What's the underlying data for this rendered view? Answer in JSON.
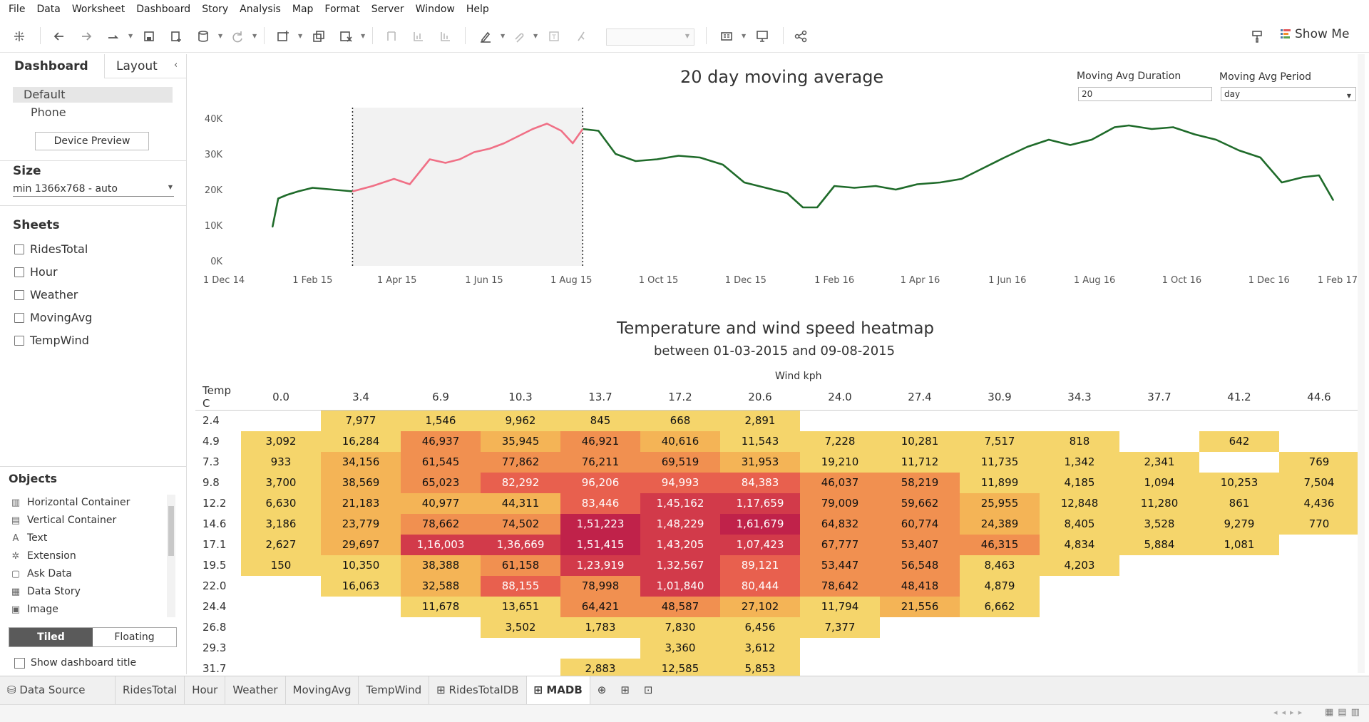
{
  "menu": [
    "File",
    "Data",
    "Worksheet",
    "Dashboard",
    "Story",
    "Analysis",
    "Map",
    "Format",
    "Server",
    "Window",
    "Help"
  ],
  "toolbar": {
    "show_me": "Show Me"
  },
  "left_pane": {
    "tab_dashboard": "Dashboard",
    "tab_layout": "Layout",
    "devices": [
      "Default",
      "Phone"
    ],
    "device_preview": "Device Preview",
    "size_label": "Size",
    "size_value": "min 1366x768 - auto",
    "sheets_label": "Sheets",
    "sheets": [
      "RidesTotal",
      "Hour",
      "Weather",
      "MovingAvg",
      "TempWind"
    ],
    "objects_label": "Objects",
    "objects": [
      "Horizontal Container",
      "Vertical Container",
      "Text",
      "Extension",
      "Ask Data",
      "Data Story",
      "Image"
    ],
    "tiled": "Tiled",
    "floating": "Floating",
    "show_title": "Show dashboard title"
  },
  "bottom_tabs": [
    "Data Source",
    "RidesTotal",
    "Hour",
    "Weather",
    "MovingAvg",
    "TempWind",
    "RidesTotalDB",
    "MADB"
  ],
  "active_tab": "MADB",
  "params": {
    "duration_label": "Moving Avg Duration",
    "duration_value": "20",
    "period_label": "Moving Avg Period",
    "period_value": "day"
  },
  "chart_data": [
    {
      "type": "line",
      "title": "20 day moving average",
      "xlabel": "",
      "ylabel": "",
      "yticks": [
        "40K",
        "30K",
        "20K",
        "10K",
        "0K"
      ],
      "ylim": [
        0,
        42000
      ],
      "xticks": [
        "1 Dec 14",
        "1 Feb 15",
        "1 Apr 15",
        "1 Jun 15",
        "1 Aug 15",
        "1 Oct 15",
        "1 Dec 15",
        "1 Feb 16",
        "1 Apr 16",
        "1 Jun 16",
        "1 Aug 16",
        "1 Oct 16",
        "1 Dec 16",
        "1 Feb 17"
      ],
      "highlight_range": [
        "2015-03-01",
        "2015-08-09"
      ],
      "colors": {
        "normal": "#1f6b2a",
        "highlight": "#f07086",
        "band": "#f2f2f2"
      },
      "series": [
        {
          "x": [
            "2015-01-04",
            "2015-01-08",
            "2015-01-14",
            "2015-01-22",
            "2015-02-01",
            "2015-02-15",
            "2015-03-01",
            "2015-03-15",
            "2015-03-30",
            "2015-04-10",
            "2015-04-24",
            "2015-05-05",
            "2015-05-15",
            "2015-05-25",
            "2015-06-05",
            "2015-06-15",
            "2015-06-25",
            "2015-07-05",
            "2015-07-15",
            "2015-07-25",
            "2015-08-02",
            "2015-08-09",
            "2015-08-20",
            "2015-09-01",
            "2015-09-15",
            "2015-09-30",
            "2015-10-15",
            "2015-10-30",
            "2015-11-15",
            "2015-11-30",
            "2015-12-15",
            "2015-12-30",
            "2016-01-10",
            "2016-01-20",
            "2016-02-01",
            "2016-02-15",
            "2016-03-01",
            "2016-03-15",
            "2016-03-30",
            "2016-04-15",
            "2016-04-30",
            "2016-05-15",
            "2016-05-30",
            "2016-06-15",
            "2016-06-30",
            "2016-07-15",
            "2016-07-30",
            "2016-08-15",
            "2016-08-25",
            "2016-09-10",
            "2016-09-25",
            "2016-10-10",
            "2016-10-25",
            "2016-11-10",
            "2016-11-25",
            "2016-12-10",
            "2016-12-25",
            "2017-01-05",
            "2017-01-15"
          ],
          "y": [
            9500,
            17500,
            18500,
            19500,
            20500,
            20000,
            19500,
            21000,
            23000,
            21500,
            28500,
            27500,
            28500,
            30500,
            31500,
            33000,
            35000,
            37000,
            38500,
            36500,
            33000,
            37000,
            36500,
            30000,
            28000,
            28500,
            29500,
            29000,
            27000,
            22000,
            20500,
            19000,
            15000,
            15000,
            21000,
            20500,
            21000,
            20000,
            21500,
            22000,
            23000,
            26000,
            29000,
            32000,
            34000,
            32500,
            34000,
            37500,
            38000,
            37000,
            37500,
            35500,
            34000,
            31000,
            29000,
            22000,
            23500,
            24000,
            17000
          ]
        }
      ]
    },
    {
      "type": "heatmap",
      "title": "Temperature and wind speed heatmap",
      "subtitle": "between 01-03-2015 and 09-08-2015",
      "xlabel": "Wind kph",
      "ylabel": "Temp C",
      "columns": [
        "0.0",
        "3.4",
        "6.9",
        "10.3",
        "13.7",
        "17.2",
        "20.6",
        "24.0",
        "27.4",
        "30.9",
        "34.3",
        "37.7",
        "41.2",
        "44.6"
      ],
      "rows": [
        {
          "temp": "2.4",
          "cells": [
            "",
            "7,977",
            "1,546",
            "9,962",
            "845",
            "668",
            "2,891",
            "",
            "",
            "",
            "",
            "",
            "",
            ""
          ]
        },
        {
          "temp": "4.9",
          "cells": [
            "3,092",
            "16,284",
            "46,937",
            "35,945",
            "46,921",
            "40,616",
            "11,543",
            "7,228",
            "10,281",
            "7,517",
            "818",
            "",
            "642",
            ""
          ]
        },
        {
          "temp": "7.3",
          "cells": [
            "933",
            "34,156",
            "61,545",
            "77,862",
            "76,211",
            "69,519",
            "31,953",
            "19,210",
            "11,712",
            "11,735",
            "1,342",
            "2,341",
            "",
            "769"
          ]
        },
        {
          "temp": "9.8",
          "cells": [
            "3,700",
            "38,569",
            "65,023",
            "82,292",
            "96,206",
            "94,993",
            "84,383",
            "46,037",
            "58,219",
            "11,899",
            "4,185",
            "1,094",
            "10,253",
            "7,504"
          ]
        },
        {
          "temp": "12.2",
          "cells": [
            "6,630",
            "21,183",
            "40,977",
            "44,311",
            "83,446",
            "1,45,162",
            "1,17,659",
            "79,009",
            "59,662",
            "25,955",
            "12,848",
            "11,280",
            "861",
            "4,436"
          ]
        },
        {
          "temp": "14.6",
          "cells": [
            "3,186",
            "23,779",
            "78,662",
            "74,502",
            "1,51,223",
            "1,48,229",
            "1,61,679",
            "64,832",
            "60,774",
            "24,389",
            "8,405",
            "3,528",
            "9,279",
            "770"
          ]
        },
        {
          "temp": "17.1",
          "cells": [
            "2,627",
            "29,697",
            "1,16,003",
            "1,36,669",
            "1,51,415",
            "1,43,205",
            "1,07,423",
            "67,777",
            "53,407",
            "46,315",
            "4,834",
            "5,884",
            "1,081",
            ""
          ]
        },
        {
          "temp": "19.5",
          "cells": [
            "150",
            "10,350",
            "38,388",
            "61,158",
            "1,23,919",
            "1,32,567",
            "89,121",
            "53,447",
            "56,548",
            "8,463",
            "4,203",
            "",
            "",
            ""
          ]
        },
        {
          "temp": "22.0",
          "cells": [
            "",
            "16,063",
            "32,588",
            "88,155",
            "78,998",
            "1,01,840",
            "80,444",
            "78,642",
            "48,418",
            "4,879",
            "",
            "",
            "",
            ""
          ]
        },
        {
          "temp": "24.4",
          "cells": [
            "",
            "",
            "11,678",
            "13,651",
            "64,421",
            "48,587",
            "27,102",
            "11,794",
            "21,556",
            "6,662",
            "",
            "",
            "",
            ""
          ]
        },
        {
          "temp": "26.8",
          "cells": [
            "",
            "",
            "",
            "3,502",
            "1,783",
            "7,830",
            "6,456",
            "7,377",
            "",
            "",
            "",
            "",
            "",
            ""
          ]
        },
        {
          "temp": "29.3",
          "cells": [
            "",
            "",
            "",
            "",
            "",
            "3,360",
            "3,612",
            "",
            "",
            "",
            "",
            "",
            "",
            ""
          ]
        },
        {
          "temp": "31.7",
          "cells": [
            "",
            "",
            "",
            "",
            "2,883",
            "12,585",
            "5,853",
            "",
            "",
            "",
            "",
            "",
            "",
            ""
          ]
        }
      ],
      "color_scale": [
        "#f5d56b",
        "#f4b456",
        "#f19050",
        "#e8604e",
        "#d23a4a",
        "#c0224a"
      ]
    }
  ]
}
